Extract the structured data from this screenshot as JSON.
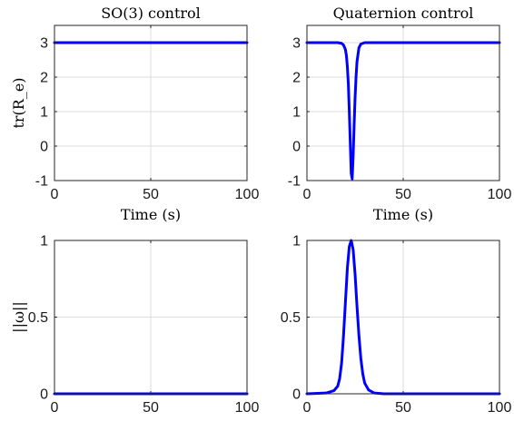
{
  "chart_data": [
    {
      "type": "line",
      "title": "SO(3) control",
      "xlabel": "Time (s)",
      "ylabel": "tr(R_e)",
      "xlim": [
        0,
        100
      ],
      "ylim": [
        -1,
        3.5
      ],
      "xticks": [
        "0",
        "50",
        "100"
      ],
      "yticks": [
        "-1",
        "0",
        "1",
        "2",
        "3"
      ],
      "grid": true,
      "series": [
        {
          "color": "#0000ff",
          "x": [
            0,
            25,
            50,
            75,
            100
          ],
          "y": [
            3,
            3,
            3,
            3,
            3
          ]
        }
      ]
    },
    {
      "type": "line",
      "title": "Quaternion control",
      "xlabel": "Time (s)",
      "ylabel": "",
      "xlim": [
        0,
        100
      ],
      "ylim": [
        -1,
        3.5
      ],
      "xticks": [
        "0",
        "50",
        "100"
      ],
      "yticks": [
        "-1",
        "0",
        "1",
        "2",
        "3"
      ],
      "grid": true,
      "series": [
        {
          "color": "#0000ff",
          "x": [
            0,
            16,
            18,
            19,
            20,
            20.5,
            21,
            21.5,
            22,
            22.5,
            23,
            23.5,
            24,
            24.5,
            25,
            25.5,
            26,
            27,
            28,
            30,
            100
          ],
          "y": [
            3,
            3,
            2.98,
            2.93,
            2.8,
            2.62,
            2.3,
            1.8,
            1.0,
            0.1,
            -0.8,
            -0.95,
            -0.3,
            0.6,
            1.4,
            2.0,
            2.45,
            2.85,
            2.96,
            3,
            3
          ]
        }
      ]
    },
    {
      "type": "line",
      "title": "",
      "xlabel": "",
      "ylabel": "||ω||",
      "xlim": [
        0,
        100
      ],
      "ylim": [
        0,
        1
      ],
      "xticks": [
        "0",
        "50",
        "100"
      ],
      "yticks": [
        "0",
        "0.5",
        "1"
      ],
      "grid": true,
      "series": [
        {
          "color": "#0000ff",
          "x": [
            0,
            25,
            50,
            75,
            100
          ],
          "y": [
            0,
            0,
            0,
            0,
            0
          ]
        }
      ]
    },
    {
      "type": "line",
      "title": "",
      "xlabel": "",
      "ylabel": "",
      "xlim": [
        0,
        100
      ],
      "ylim": [
        0,
        1
      ],
      "xticks": [
        "0",
        "50",
        "100"
      ],
      "yticks": [
        "0",
        "0.5",
        "1"
      ],
      "grid": true,
      "series": [
        {
          "color": "#0000ff",
          "x": [
            0,
            10,
            14,
            16,
            17,
            18,
            19,
            20,
            21,
            22,
            23,
            24,
            25,
            26,
            27,
            28,
            29,
            30,
            32,
            35,
            40,
            100
          ],
          "y": [
            0,
            0.005,
            0.02,
            0.05,
            0.1,
            0.2,
            0.38,
            0.6,
            0.82,
            0.96,
            1.0,
            0.94,
            0.78,
            0.57,
            0.38,
            0.23,
            0.13,
            0.07,
            0.025,
            0.005,
            0,
            0
          ]
        }
      ]
    }
  ]
}
